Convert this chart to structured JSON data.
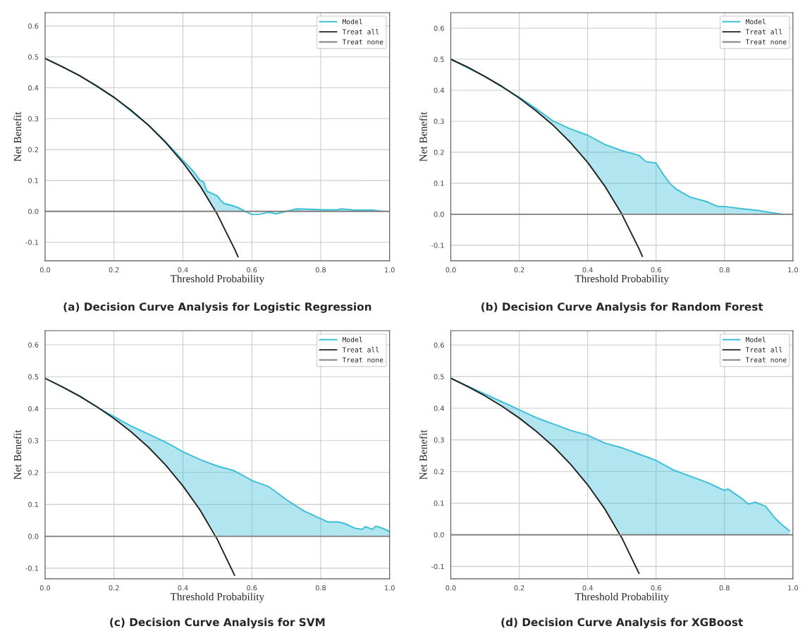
{
  "chart_data": [
    {
      "type": "line",
      "title": "(a) Decision Curve Analysis for Logistic Regression",
      "xlabel": "Threshold Probability",
      "ylabel": "Net Benefit",
      "xlim": [
        0,
        1
      ],
      "ylim": [
        -0.16,
        0.643
      ],
      "xticks": [
        {
          "value": 0,
          "label": "0.0"
        },
        {
          "value": 0.2,
          "label": "0.2"
        },
        {
          "value": 0.4,
          "label": "0.4"
        },
        {
          "value": 0.6,
          "label": "0.6"
        },
        {
          "value": 0.8,
          "label": "0.8"
        },
        {
          "value": 1,
          "label": "1.0"
        }
      ],
      "yticks": [
        {
          "value": -0.1,
          "label": "-0.1"
        },
        {
          "value": 0,
          "label": "0.0"
        },
        {
          "value": 0.1,
          "label": "0.1"
        },
        {
          "value": 0.2,
          "label": "0.2"
        },
        {
          "value": 0.3,
          "label": "0.3"
        },
        {
          "value": 0.4,
          "label": "0.4"
        },
        {
          "value": 0.5,
          "label": "0.5"
        },
        {
          "value": 0.6,
          "label": "0.6"
        }
      ],
      "grid": true,
      "legend": "top right",
      "series": [
        {
          "name": "Model",
          "color": "#3cbfd8",
          "x": [
            0,
            0.1,
            0.2,
            0.3,
            0.35,
            0.4,
            0.43,
            0.45,
            0.46,
            0.47,
            0.49,
            0.5,
            0.51,
            0.52,
            0.54,
            0.56,
            0.58,
            0.6,
            0.62,
            0.65,
            0.67,
            0.7,
            0.73,
            0.77,
            0.8,
            0.85,
            0.86,
            0.9,
            0.95,
            0.98
          ],
          "values": [
            0.495,
            0.44,
            0.369,
            0.279,
            0.225,
            0.165,
            0.13,
            0.1,
            0.095,
            0.065,
            0.055,
            0.05,
            0.035,
            0.025,
            0.02,
            0.012,
            0.0,
            -0.01,
            -0.01,
            -0.003,
            -0.008,
            0.0,
            0.008,
            0.007,
            0.005,
            0.005,
            0.008,
            0.004,
            0.004,
            0.0
          ],
          "lower": [
            0.495,
            0.439,
            0.369,
            0.279,
            0.223,
            0.158,
            0.114,
            0.082,
            0.064,
            0.047,
            0.01,
            0,
            0,
            0,
            0,
            0,
            0,
            null,
            null,
            null,
            null,
            0,
            0,
            0,
            0,
            0,
            0,
            0,
            0,
            0
          ],
          "upper": [
            0.495,
            0.44,
            0.369,
            0.279,
            0.225,
            0.165,
            0.13,
            0.1,
            0.095,
            0.065,
            0.055,
            0.05,
            0.035,
            0.025,
            0.02,
            0.012,
            0.0,
            null,
            null,
            null,
            null,
            0.0,
            0.008,
            0.007,
            0.005,
            0.005,
            0.008,
            0.004,
            0.004,
            0.0
          ]
        },
        {
          "name": "Treat all",
          "color": "#222222",
          "x": [
            0,
            0.05,
            0.1,
            0.15,
            0.2,
            0.25,
            0.3,
            0.35,
            0.4,
            0.45,
            0.5,
            0.55,
            0.56
          ],
          "values": [
            0.495,
            0.468,
            0.439,
            0.406,
            0.369,
            0.327,
            0.279,
            0.223,
            0.158,
            0.082,
            -0.01,
            -0.122,
            -0.147
          ]
        },
        {
          "name": "Treat none",
          "color": "#808080",
          "x": [
            0,
            1
          ],
          "values": [
            0,
            0
          ]
        }
      ]
    },
    {
      "type": "line",
      "title": "(b) Decision Curve Analysis for Random Forest",
      "xlabel": "Threshold Probability",
      "ylabel": "Net Benefit",
      "xlim": [
        0,
        1
      ],
      "ylim": [
        -0.15,
        0.65
      ],
      "xticks": [
        {
          "value": 0,
          "label": "0.0"
        },
        {
          "value": 0.2,
          "label": "0.2"
        },
        {
          "value": 0.4,
          "label": "0.4"
        },
        {
          "value": 0.6,
          "label": "0.6"
        },
        {
          "value": 0.8,
          "label": "0.8"
        },
        {
          "value": 1,
          "label": "1.0"
        }
      ],
      "yticks": [
        {
          "value": -0.1,
          "label": "-0.1"
        },
        {
          "value": 0,
          "label": "0.0"
        },
        {
          "value": 0.1,
          "label": "0.1"
        },
        {
          "value": 0.2,
          "label": "0.2"
        },
        {
          "value": 0.3,
          "label": "0.3"
        },
        {
          "value": 0.4,
          "label": "0.4"
        },
        {
          "value": 0.5,
          "label": "0.5"
        },
        {
          "value": 0.6,
          "label": "0.6"
        }
      ],
      "grid": true,
      "legend": "top right",
      "series": [
        {
          "name": "Model",
          "color": "#3cbfd8",
          "x": [
            0,
            0.1,
            0.2,
            0.25,
            0.3,
            0.35,
            0.4,
            0.45,
            0.5,
            0.55,
            0.57,
            0.6,
            0.62,
            0.64,
            0.66,
            0.7,
            0.75,
            0.78,
            0.8,
            0.85,
            0.9,
            0.95,
            0.97
          ],
          "values": [
            0.5,
            0.444,
            0.377,
            0.34,
            0.3,
            0.275,
            0.255,
            0.225,
            0.205,
            0.19,
            0.17,
            0.165,
            0.13,
            0.1,
            0.08,
            0.055,
            0.04,
            0.025,
            0.025,
            0.018,
            0.012,
            0.003,
            0.0
          ],
          "lower": [
            0.5,
            0.444,
            0.375,
            0.333,
            0.286,
            0.231,
            0.167,
            0.091,
            0,
            0,
            0,
            0,
            0,
            0,
            0,
            0,
            0,
            0,
            0,
            0,
            0,
            0,
            0
          ],
          "upper": [
            0.5,
            0.444,
            0.377,
            0.34,
            0.3,
            0.275,
            0.255,
            0.225,
            0.205,
            0.19,
            0.17,
            0.165,
            0.13,
            0.1,
            0.08,
            0.055,
            0.04,
            0.025,
            0.025,
            0.018,
            0.012,
            0.003,
            0.0
          ]
        },
        {
          "name": "Treat all",
          "color": "#222222",
          "x": [
            0,
            0.05,
            0.1,
            0.15,
            0.2,
            0.25,
            0.3,
            0.35,
            0.4,
            0.45,
            0.5,
            0.55,
            0.56
          ],
          "values": [
            0.5,
            0.474,
            0.444,
            0.412,
            0.375,
            0.333,
            0.286,
            0.231,
            0.167,
            0.091,
            0,
            -0.111,
            -0.136
          ]
        },
        {
          "name": "Treat none",
          "color": "#808080",
          "x": [
            0,
            1
          ],
          "values": [
            0,
            0
          ]
        }
      ]
    },
    {
      "type": "line",
      "title": "(c) Decision Curve Analysis for SVM",
      "xlabel": "Threshold Probability",
      "ylabel": "Net Benefit",
      "xlim": [
        0,
        1
      ],
      "ylim": [
        -0.133,
        0.644
      ],
      "xticks": [
        {
          "value": 0,
          "label": "0.0"
        },
        {
          "value": 0.2,
          "label": "0.2"
        },
        {
          "value": 0.4,
          "label": "0.4"
        },
        {
          "value": 0.6,
          "label": "0.6"
        },
        {
          "value": 0.8,
          "label": "0.8"
        },
        {
          "value": 1,
          "label": "1.0"
        }
      ],
      "yticks": [
        {
          "value": -0.1,
          "label": "-0.1"
        },
        {
          "value": 0,
          "label": "0.0"
        },
        {
          "value": 0.1,
          "label": "0.1"
        },
        {
          "value": 0.2,
          "label": "0.2"
        },
        {
          "value": 0.3,
          "label": "0.3"
        },
        {
          "value": 0.4,
          "label": "0.4"
        },
        {
          "value": 0.5,
          "label": "0.5"
        },
        {
          "value": 0.6,
          "label": "0.6"
        }
      ],
      "grid": true,
      "legend": "top right",
      "series": [
        {
          "name": "Model",
          "color": "#3cbfd8",
          "x": [
            0,
            0.1,
            0.15,
            0.2,
            0.25,
            0.3,
            0.35,
            0.4,
            0.45,
            0.5,
            0.55,
            0.6,
            0.65,
            0.7,
            0.75,
            0.8,
            0.82,
            0.85,
            0.87,
            0.9,
            0.92,
            0.93,
            0.95,
            0.96,
            0.98,
            1.0
          ],
          "values": [
            0.495,
            0.44,
            0.405,
            0.375,
            0.345,
            0.32,
            0.295,
            0.265,
            0.24,
            0.22,
            0.205,
            0.175,
            0.155,
            0.115,
            0.08,
            0.055,
            0.045,
            0.045,
            0.04,
            0.025,
            0.022,
            0.03,
            0.022,
            0.032,
            0.025,
            0.015
          ],
          "lower": [
            0.495,
            0.439,
            0.405,
            0.369,
            0.327,
            0.279,
            0.223,
            0.158,
            0.082,
            0,
            0,
            0,
            0,
            0,
            0,
            0,
            0,
            0,
            0,
            0,
            0,
            0,
            0,
            0,
            0,
            0
          ],
          "upper": [
            0.495,
            0.44,
            0.405,
            0.375,
            0.345,
            0.32,
            0.295,
            0.265,
            0.24,
            0.22,
            0.205,
            0.175,
            0.155,
            0.115,
            0.08,
            0.055,
            0.045,
            0.045,
            0.04,
            0.025,
            0.022,
            0.03,
            0.022,
            0.032,
            0.025,
            0.015
          ]
        },
        {
          "name": "Treat all",
          "color": "#222222",
          "x": [
            0,
            0.05,
            0.1,
            0.15,
            0.2,
            0.25,
            0.3,
            0.35,
            0.4,
            0.45,
            0.5,
            0.55
          ],
          "values": [
            0.495,
            0.468,
            0.439,
            0.406,
            0.369,
            0.327,
            0.279,
            0.223,
            0.158,
            0.082,
            -0.01,
            -0.122
          ]
        },
        {
          "name": "Treat none",
          "color": "#808080",
          "x": [
            0,
            1
          ],
          "values": [
            0,
            0
          ]
        }
      ]
    },
    {
      "type": "line",
      "title": "(d) Decision Curve Analysis for XGBoost",
      "xlabel": "Threshold Probability",
      "ylabel": "Net Benefit",
      "xlim": [
        0,
        1
      ],
      "ylim": [
        -0.139,
        0.645
      ],
      "xticks": [
        {
          "value": 0,
          "label": "0.0"
        },
        {
          "value": 0.2,
          "label": "0.2"
        },
        {
          "value": 0.4,
          "label": "0.4"
        },
        {
          "value": 0.6,
          "label": "0.6"
        },
        {
          "value": 0.8,
          "label": "0.8"
        },
        {
          "value": 1,
          "label": "1.0"
        }
      ],
      "yticks": [
        {
          "value": -0.1,
          "label": "-0.1"
        },
        {
          "value": 0,
          "label": "0.0"
        },
        {
          "value": 0.1,
          "label": "0.1"
        },
        {
          "value": 0.2,
          "label": "0.2"
        },
        {
          "value": 0.3,
          "label": "0.3"
        },
        {
          "value": 0.4,
          "label": "0.4"
        },
        {
          "value": 0.5,
          "label": "0.5"
        },
        {
          "value": 0.6,
          "label": "0.6"
        }
      ],
      "grid": true,
      "legend": "top right",
      "series": [
        {
          "name": "Model",
          "color": "#3cbfd8",
          "x": [
            0,
            0.1,
            0.15,
            0.2,
            0.25,
            0.3,
            0.35,
            0.4,
            0.45,
            0.5,
            0.55,
            0.6,
            0.65,
            0.7,
            0.75,
            0.8,
            0.81,
            0.85,
            0.87,
            0.89,
            0.92,
            0.95,
            0.97,
            0.99
          ],
          "values": [
            0.495,
            0.445,
            0.42,
            0.395,
            0.37,
            0.35,
            0.33,
            0.315,
            0.29,
            0.275,
            0.255,
            0.235,
            0.205,
            0.185,
            0.165,
            0.14,
            0.145,
            0.115,
            0.097,
            0.103,
            0.09,
            0.05,
            0.03,
            0.012
          ],
          "lower": [
            0.495,
            0.439,
            0.406,
            0.369,
            0.327,
            0.279,
            0.223,
            0.158,
            0.082,
            0,
            0,
            0,
            0,
            0,
            0,
            0,
            0,
            0,
            0,
            0,
            0,
            0,
            0,
            0
          ],
          "upper": [
            0.495,
            0.445,
            0.42,
            0.395,
            0.37,
            0.35,
            0.33,
            0.315,
            0.29,
            0.275,
            0.255,
            0.235,
            0.205,
            0.185,
            0.165,
            0.14,
            0.145,
            0.115,
            0.097,
            0.103,
            0.09,
            0.05,
            0.03,
            0.012
          ]
        },
        {
          "name": "Treat all",
          "color": "#222222",
          "x": [
            0,
            0.05,
            0.1,
            0.15,
            0.2,
            0.25,
            0.3,
            0.35,
            0.4,
            0.45,
            0.5,
            0.55
          ],
          "values": [
            0.495,
            0.468,
            0.439,
            0.406,
            0.369,
            0.327,
            0.279,
            0.223,
            0.158,
            0.082,
            -0.01,
            -0.122
          ]
        },
        {
          "name": "Treat none",
          "color": "#808080",
          "x": [
            0,
            1
          ],
          "values": [
            0,
            0
          ]
        }
      ]
    }
  ]
}
